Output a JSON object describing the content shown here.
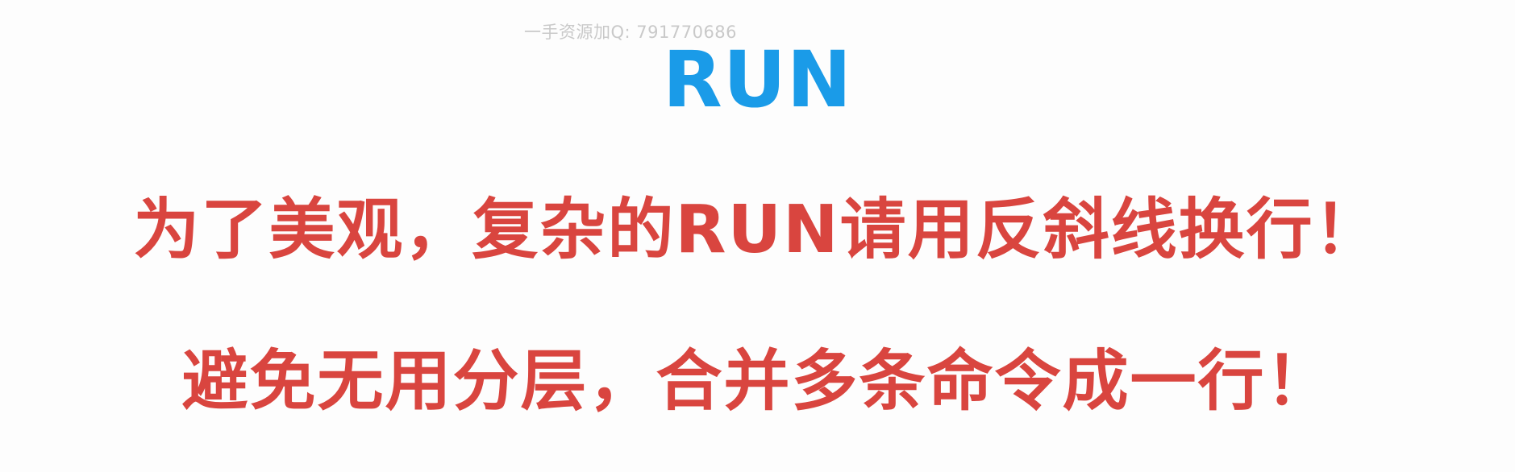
{
  "watermark": "一手资源加Q: 791770686",
  "title": "RUN",
  "tips": [
    "为了美观，复杂的RUN请用反斜线换行！",
    "避免无用分层，合并多条命令成一行！"
  ],
  "colors": {
    "title": "#1a9be8",
    "tips": "#d9453f",
    "watermark": "#c9c9c9",
    "background": "#fdfdfd"
  }
}
